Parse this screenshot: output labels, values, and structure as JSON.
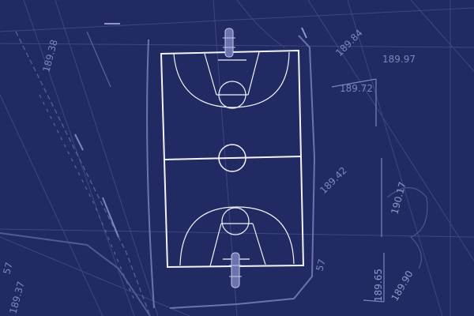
{
  "theme": {
    "background": "#212a63",
    "line_faint": "#3f4a86",
    "line_mid": "#5a659f",
    "court_line": "#f2f3fb",
    "label": "#7c86b8"
  },
  "elevation_labels": {
    "l1": "189.97",
    "l2": "189.72",
    "l3": "190.17",
    "l4": "189.65",
    "l5": "189.90",
    "l6": "189.38",
    "l7": "189.37",
    "l8": "189.84",
    "l9": "189.42",
    "l10": "57",
    "l11": "57"
  }
}
